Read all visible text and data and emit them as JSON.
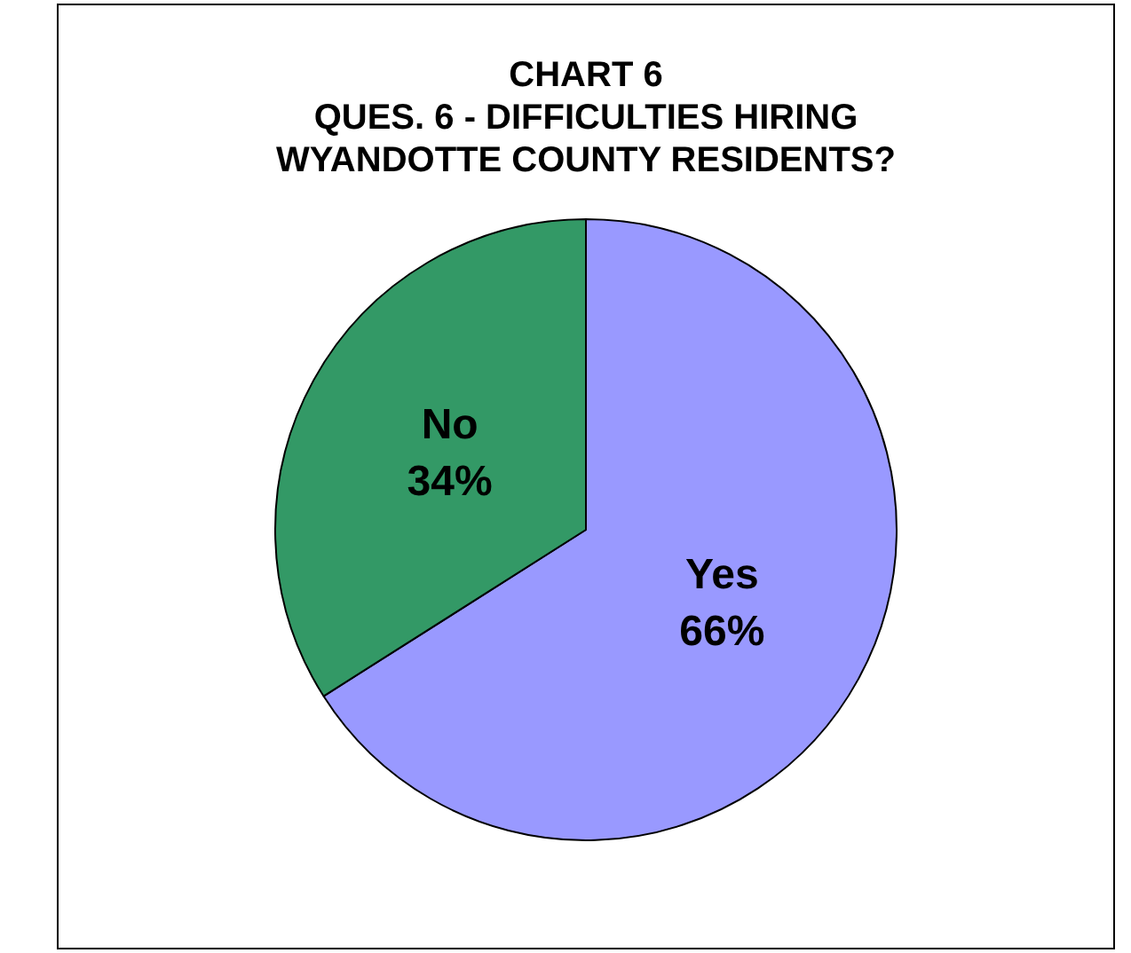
{
  "chart_data": {
    "type": "pie",
    "title": "CHART 6\nQUES. 6 - DIFFICULTIES HIRING\nWYANDOTTE COUNTY RESIDENTS?",
    "categories": [
      "Yes",
      "No"
    ],
    "values": [
      66,
      34
    ],
    "colors": [
      "#9999ff",
      "#339966"
    ],
    "value_labels": [
      "66%",
      "34%"
    ],
    "legend": false
  }
}
